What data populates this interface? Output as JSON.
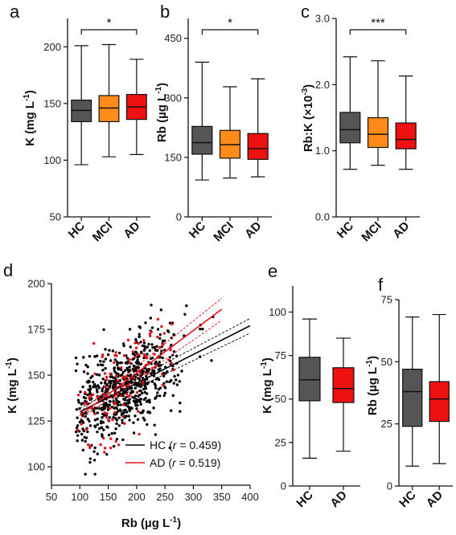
{
  "colors": {
    "HC": "#555555",
    "MCI": "#ff8c1a",
    "AD": "#ee1111",
    "points_HC": "#000000",
    "points_AD": "#e8101a"
  },
  "chart_data": [
    {
      "panel": "a",
      "type": "box",
      "ylabel": "K (mg L-1)",
      "yticks": [
        "50",
        "100",
        "150",
        "200"
      ],
      "ylim": [
        50,
        225
      ],
      "categories": [
        "HC",
        "MCI",
        "AD"
      ],
      "boxes": [
        {
          "name": "HC",
          "color": "#555555",
          "whisker_low": 96,
          "q1": 134,
          "median": 144,
          "q3": 153,
          "whisker_high": 201
        },
        {
          "name": "MCI",
          "color": "#ff8c1a",
          "whisker_low": 103,
          "q1": 134,
          "median": 146,
          "q3": 157,
          "whisker_high": 202
        },
        {
          "name": "AD",
          "color": "#ee1111",
          "whisker_low": 105,
          "q1": 136,
          "median": 147,
          "q3": 158,
          "whisker_high": 189
        }
      ],
      "significance": {
        "label": "*",
        "from": "HC",
        "to": "AD"
      }
    },
    {
      "panel": "b",
      "type": "box",
      "ylabel": "Rb (µg L-1)",
      "yticks": [
        "0",
        "150",
        "300",
        "450"
      ],
      "ylim": [
        0,
        500
      ],
      "categories": [
        "HC",
        "MCI",
        "AD"
      ],
      "boxes": [
        {
          "name": "HC",
          "color": "#555555",
          "whisker_low": 93,
          "q1": 158,
          "median": 187,
          "q3": 228,
          "whisker_high": 390
        },
        {
          "name": "MCI",
          "color": "#ff8c1a",
          "whisker_low": 98,
          "q1": 148,
          "median": 182,
          "q3": 218,
          "whisker_high": 328
        },
        {
          "name": "AD",
          "color": "#ee1111",
          "whisker_low": 101,
          "q1": 145,
          "median": 172,
          "q3": 210,
          "whisker_high": 348
        }
      ],
      "significance": {
        "label": "*",
        "from": "HC",
        "to": "AD"
      }
    },
    {
      "panel": "c",
      "type": "box",
      "ylabel": "Rb:K (×10-3)",
      "yticks": [
        "0.0",
        "1.0",
        "2.0",
        "3.0"
      ],
      "ylim": [
        0,
        3.0
      ],
      "categories": [
        "HC",
        "MCI",
        "AD"
      ],
      "boxes": [
        {
          "name": "HC",
          "color": "#555555",
          "whisker_low": 0.72,
          "q1": 1.12,
          "median": 1.32,
          "q3": 1.58,
          "whisker_high": 2.42
        },
        {
          "name": "MCI",
          "color": "#ff8c1a",
          "whisker_low": 0.78,
          "q1": 1.05,
          "median": 1.25,
          "q3": 1.5,
          "whisker_high": 2.36
        },
        {
          "name": "AD",
          "color": "#ee1111",
          "whisker_low": 0.72,
          "q1": 1.03,
          "median": 1.17,
          "q3": 1.42,
          "whisker_high": 2.13
        }
      ],
      "significance": {
        "label": "***",
        "from": "HC",
        "to": "AD"
      }
    },
    {
      "panel": "d",
      "type": "scatter",
      "xlabel": "Rb (µg L-1)",
      "ylabel": "K (mg L-1)",
      "xticks": [
        "50",
        "100",
        "150",
        "200",
        "250",
        "300",
        "350",
        "400"
      ],
      "xlim": [
        50,
        400
      ],
      "yticks": [
        "100",
        "125",
        "150",
        "175",
        "200"
      ],
      "ylim": [
        90,
        200
      ],
      "point_generation": {
        "seed": 7,
        "HC": {
          "n": 640,
          "rb_median": 180,
          "rb_sd": 55,
          "k_mean": 144,
          "k_sd": 15
        },
        "AD": {
          "n": 120,
          "rb_median": 175,
          "rb_sd": 50,
          "k_mean": 147,
          "k_sd": 15
        }
      },
      "series": [
        {
          "name": "HC",
          "color": "#000000",
          "r_text": "0.459",
          "fit": {
            "x": [
              100,
              400
            ],
            "y": [
              130,
              177
            ]
          }
        },
        {
          "name": "AD",
          "color": "#e8101a",
          "r_text": "0.519",
          "fit": {
            "x": [
              100,
              350
            ],
            "y": [
              128,
              186
            ]
          }
        }
      ]
    },
    {
      "panel": "e",
      "type": "box",
      "ylabel": "K (mg L-1)",
      "yticks": [
        "0",
        "25",
        "50",
        "75",
        "100"
      ],
      "ylim": [
        0,
        115
      ],
      "categories": [
        "HC",
        "AD"
      ],
      "boxes": [
        {
          "name": "HC",
          "color": "#555555",
          "whisker_low": 16,
          "q1": 49,
          "median": 61,
          "q3": 74,
          "whisker_high": 96
        },
        {
          "name": "AD",
          "color": "#ee1111",
          "whisker_low": 20,
          "q1": 48,
          "median": 56,
          "q3": 68,
          "whisker_high": 85
        }
      ]
    },
    {
      "panel": "f",
      "type": "box",
      "ylabel": "Rb (µg L-1)",
      "yticks": [
        "0",
        "25",
        "50",
        "75"
      ],
      "ylim": [
        0,
        75
      ],
      "categories": [
        "HC",
        "AD"
      ],
      "boxes": [
        {
          "name": "HC",
          "color": "#555555",
          "whisker_low": 8,
          "q1": 24,
          "median": 38,
          "q3": 47,
          "whisker_high": 68
        },
        {
          "name": "AD",
          "color": "#ee1111",
          "whisker_low": 9,
          "q1": 26,
          "median": 35,
          "q3": 42,
          "whisker_high": 69
        }
      ]
    }
  ],
  "labels": {
    "a": "a",
    "b": "b",
    "c": "c",
    "d": "d",
    "e": "e",
    "f": "f",
    "unit_mg_main": "K (mg L",
    "unit_exp_neg1": "-1",
    "unit_close": ")",
    "unit_rb_main": "Rb (µg L",
    "unit_rbk_main": "Rb:K (×10",
    "unit_exp_neg3": "-3",
    "legend_r_prefix": " (",
    "legend_r_italic": "r",
    "legend_r_eq": " = "
  }
}
